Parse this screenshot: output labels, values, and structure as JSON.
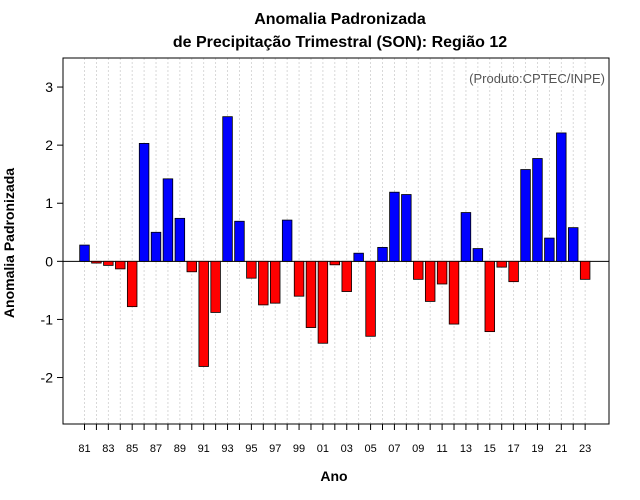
{
  "chart_data": {
    "type": "bar",
    "title_line1": "Anomalia Padronizada",
    "title_line2": "de Precipitação Trimestral (SON): Região 12",
    "xlabel": "Ano",
    "ylabel": "Anomalia Padronizada",
    "credit": "(Produto:CPTEC/INPE)",
    "ylim": [
      -2.8,
      3.5
    ],
    "yticks": [
      "3",
      "2",
      "1",
      "0",
      "-1",
      "-2"
    ],
    "ytick_values": [
      3,
      2,
      1,
      0,
      -1,
      -2
    ],
    "categories": [
      1981,
      1982,
      1983,
      1984,
      1985,
      1986,
      1987,
      1988,
      1989,
      1990,
      1991,
      1992,
      1993,
      1994,
      1995,
      1996,
      1997,
      1998,
      1999,
      2000,
      2001,
      2002,
      2003,
      2004,
      2005,
      2006,
      2007,
      2008,
      2009,
      2010,
      2011,
      2012,
      2013,
      2014,
      2015,
      2016,
      2017,
      2018,
      2019,
      2020,
      2021,
      2022,
      2023
    ],
    "xtick_labels": [
      "81",
      "83",
      "85",
      "87",
      "89",
      "91",
      "93",
      "95",
      "97",
      "99",
      "01",
      "03",
      "05",
      "07",
      "09",
      "11",
      "13",
      "15",
      "17",
      "19",
      "21",
      "23"
    ],
    "values": [
      0.28,
      -0.03,
      -0.07,
      -0.13,
      -0.78,
      2.03,
      0.5,
      1.42,
      0.74,
      -0.18,
      -1.81,
      -0.88,
      2.49,
      0.69,
      -0.29,
      -0.75,
      -0.72,
      0.71,
      -0.6,
      -1.14,
      -1.41,
      -0.06,
      -0.52,
      0.14,
      -1.29,
      0.24,
      1.19,
      1.15,
      -0.31,
      -0.69,
      -0.39,
      -1.08,
      0.84,
      0.22,
      -1.21,
      -0.1,
      -0.35,
      1.58,
      1.77,
      0.4,
      2.21,
      0.58,
      -0.31
    ],
    "colors": {
      "positive": "#0000ff",
      "negative": "#ff0000"
    }
  }
}
